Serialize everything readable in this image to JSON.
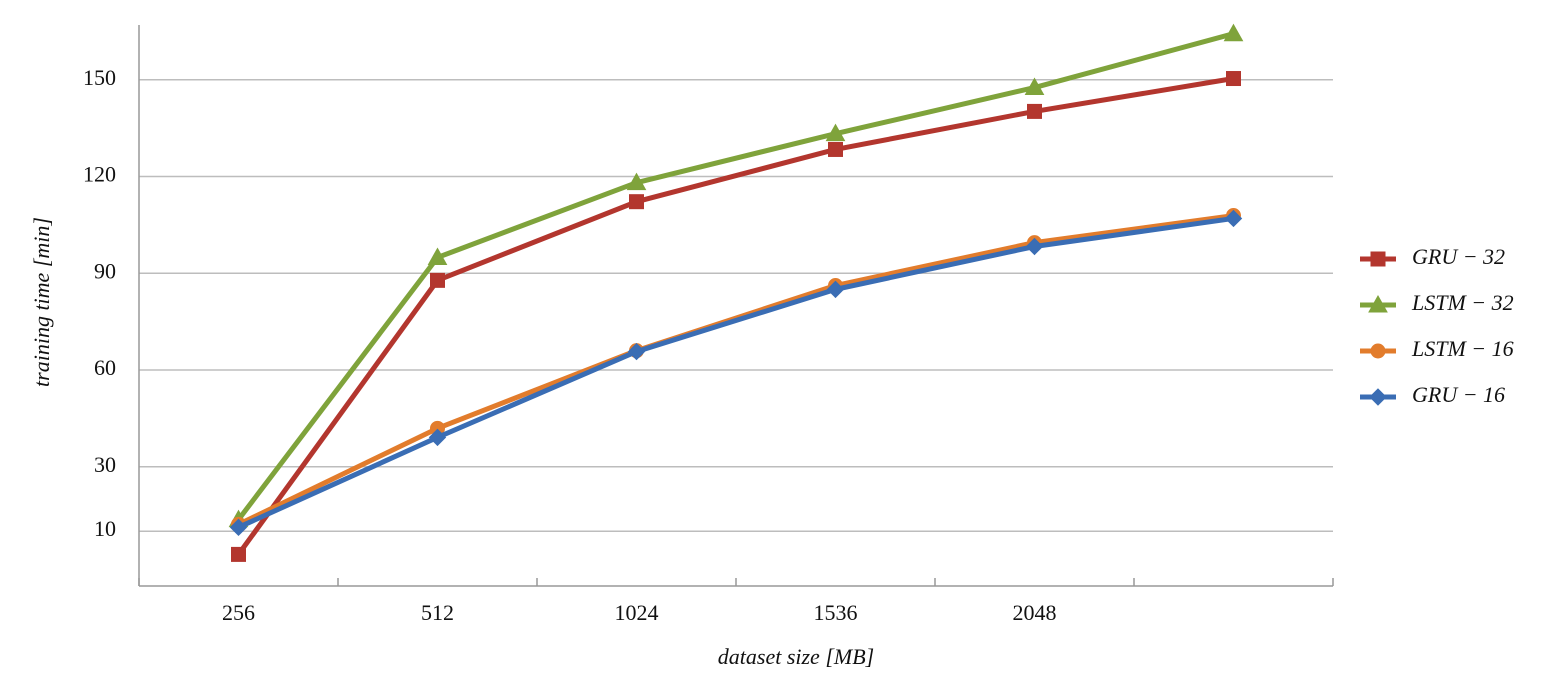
{
  "chart_data": {
    "type": "line",
    "x_label": "dataset size [MB]",
    "y_label": "training time [min]",
    "categories": [
      "256",
      "512",
      "1024",
      "1536",
      "2048",
      null
    ],
    "ylim": [
      -7,
      167
    ],
    "yticks": [
      10,
      30,
      60,
      90,
      120,
      150
    ],
    "grid": true,
    "legend": "right",
    "series": [
      {
        "name": "GRU − 32",
        "color": "#b3362e",
        "marker": "square",
        "values": [
          2.8,
          87.8,
          112.2,
          128.4,
          140.2,
          150.4
        ]
      },
      {
        "name": "LSTM − 32",
        "color": "#7fa33b",
        "marker": "triangle",
        "values": [
          13.6,
          94.9,
          118.1,
          133.3,
          147.6,
          164.3
        ]
      },
      {
        "name": "LSTM − 16",
        "color": "#e27c2c",
        "marker": "circle",
        "values": [
          12.1,
          41.9,
          66.0,
          86.2,
          99.5,
          107.9
        ]
      },
      {
        "name": "GRU − 16",
        "color": "#3a6db4",
        "marker": "diamond",
        "values": [
          11.2,
          39.1,
          65.7,
          85.0,
          98.3,
          107.0
        ]
      }
    ]
  }
}
